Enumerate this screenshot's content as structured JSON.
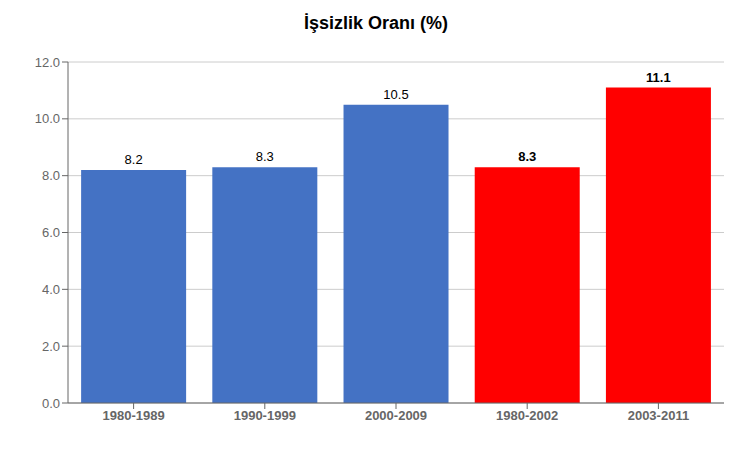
{
  "chart_data": {
    "type": "bar",
    "title": "İşsizlik Oranı (%)",
    "categories": [
      "1980-1989",
      "1990-1999",
      "2000-2009",
      "1980-2002",
      "2003-2011"
    ],
    "values": [
      8.2,
      8.3,
      10.5,
      8.3,
      11.1
    ],
    "colors": [
      "#4472C4",
      "#4472C4",
      "#4472C4",
      "#FF0000",
      "#FF0000"
    ],
    "ylim": [
      0,
      12.0
    ],
    "yticks": [
      {
        "value": 0,
        "label": "0.0"
      },
      {
        "value": 2,
        "label": "2.0"
      },
      {
        "value": 4,
        "label": "4.0"
      },
      {
        "value": 6,
        "label": "6.0"
      },
      {
        "value": 8,
        "label": "8.0"
      },
      {
        "value": 10,
        "label": "10.0"
      },
      {
        "value": 12,
        "label": "12.0"
      }
    ],
    "grid": true,
    "data_labels": true
  }
}
